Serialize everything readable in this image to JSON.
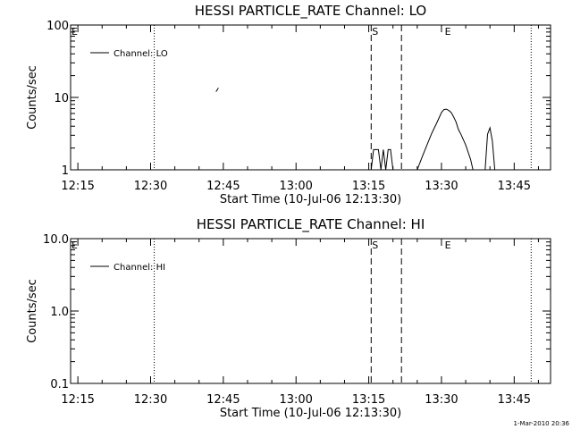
{
  "chart_data": [
    {
      "type": "line",
      "title": "HESSI PARTICLE_RATE Channel: LO",
      "ylabel": "Counts/sec",
      "xlabel": "Start Time (10-Jul-06 12:13:30)",
      "x_tick_labels": [
        "12:15",
        "12:30",
        "12:45",
        "13:00",
        "13:15",
        "13:30",
        "13:45"
      ],
      "x_tick_values": [
        "12:15",
        "12:30",
        "12:45",
        "13:00",
        "13:15",
        "13:30",
        "13:45"
      ],
      "xlim": [
        "12:13:30",
        "13:52:30"
      ],
      "y_scale": "log",
      "ylim": [
        1,
        100
      ],
      "y_tick_labels": [
        "1",
        "10",
        "100"
      ],
      "y_tick_values": [
        1,
        10,
        100
      ],
      "legend": {
        "label": "Channel: LO",
        "placement": "top-left"
      },
      "markers": {
        "dotted": [
          "12:30:45",
          "13:48:30"
        ],
        "dashed": [
          "13:15:30",
          "13:21:45"
        ],
        "labels": [
          {
            "text": "E",
            "at": "12:13:30"
          },
          {
            "text": "S",
            "at": "13:15:30"
          },
          {
            "text": "E",
            "at": "13:30:30"
          }
        ]
      },
      "series": [
        {
          "name": "Channel: LO",
          "segments": [
            {
              "x": [
                "12:43:30",
                "12:44:00"
              ],
              "y": [
                12.0,
                13.5
              ]
            },
            {
              "x": [
                "13:15:30",
                "13:16:00",
                "13:17:00",
                "13:17:30",
                "13:18:00",
                "13:18:30",
                "13:19:00",
                "13:19:30",
                "13:20:00"
              ],
              "y": [
                1.0,
                1.9,
                1.9,
                1.0,
                1.9,
                1.0,
                1.9,
                1.9,
                1.0
              ]
            },
            {
              "x": [
                "13:25:00",
                "13:26:00",
                "13:27:00",
                "13:28:00",
                "13:29:00",
                "13:29:30",
                "13:30:00",
                "13:30:30",
                "13:31:00",
                "13:31:30",
                "13:32:00",
                "13:32:30",
                "13:33:00",
                "13:33:30",
                "13:34:00",
                "13:35:00",
                "13:36:00",
                "13:36:30"
              ],
              "y": [
                1.0,
                1.5,
                2.2,
                3.2,
                4.4,
                5.2,
                6.2,
                6.8,
                6.9,
                6.6,
                6.2,
                5.4,
                4.6,
                3.6,
                3.1,
                2.2,
                1.4,
                1.0
              ]
            },
            {
              "x": [
                "13:39:00",
                "13:39:30",
                "13:40:00",
                "13:40:30",
                "13:41:00"
              ],
              "y": [
                1.0,
                3.1,
                3.8,
                2.5,
                1.0
              ]
            }
          ]
        }
      ]
    },
    {
      "type": "line",
      "title": "HESSI PARTICLE_RATE Channel: HI",
      "ylabel": "Counts/sec",
      "xlabel": "Start Time (10-Jul-06 12:13:30)",
      "x_tick_labels": [
        "12:15",
        "12:30",
        "12:45",
        "13:00",
        "13:15",
        "13:30",
        "13:45"
      ],
      "x_tick_values": [
        "12:15",
        "12:30",
        "12:45",
        "13:00",
        "13:15",
        "13:30",
        "13:45"
      ],
      "xlim": [
        "12:13:30",
        "13:52:30"
      ],
      "y_scale": "log",
      "ylim": [
        0.1,
        10
      ],
      "y_tick_labels": [
        "0.1",
        "1.0",
        "10.0"
      ],
      "y_tick_values": [
        0.1,
        1,
        10
      ],
      "legend": {
        "label": "Channel: HI",
        "placement": "top-left"
      },
      "markers": {
        "dotted": [
          "12:30:45",
          "13:48:30"
        ],
        "dashed": [
          "13:15:30",
          "13:21:45"
        ],
        "labels": [
          {
            "text": "E",
            "at": "12:13:30"
          },
          {
            "text": "S",
            "at": "13:15:30"
          },
          {
            "text": "E",
            "at": "13:30:30"
          }
        ]
      },
      "series": [
        {
          "name": "Channel: HI",
          "segments": []
        }
      ]
    }
  ],
  "footer": {
    "timestamp": "1-Mar-2010 20:36"
  }
}
